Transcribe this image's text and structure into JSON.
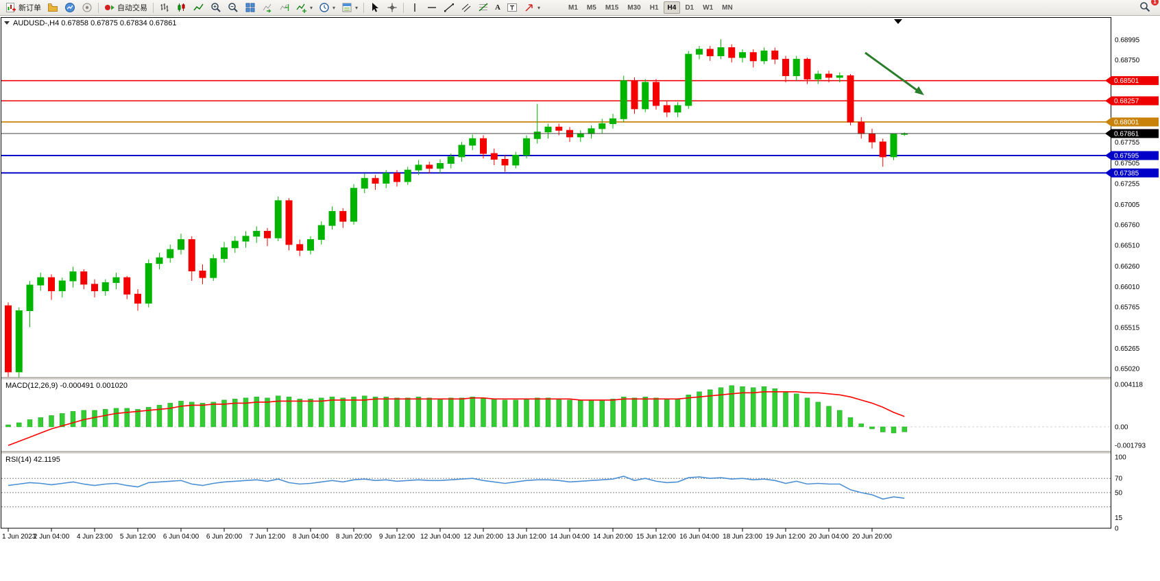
{
  "toolbar": {
    "new_order_label": "新订单",
    "auto_trading_label": "自动交易",
    "caret_glyph": "▾",
    "text_tool_glyph": "A",
    "label_tool_glyph": "T",
    "timeframes": [
      "M1",
      "M5",
      "M15",
      "M30",
      "H1",
      "H4",
      "D1",
      "W1",
      "MN"
    ],
    "active_timeframe": "H4",
    "notification_badge": "1"
  },
  "chart": {
    "symbol_title": "AUDUSD-,H4",
    "ohlc_text": "0.67858 0.67875 0.67834 0.67861",
    "price_axis_labels": [
      "0.68995",
      "0.68750",
      "0.67755",
      "0.67505",
      "0.67255",
      "0.67005",
      "0.66760",
      "0.66510",
      "0.66260",
      "0.66010",
      "0.65765",
      "0.65515",
      "0.65265",
      "0.65020"
    ],
    "tagged_levels": [
      {
        "price": "0.68501",
        "value": 0.68501,
        "color": "#ef0000",
        "line_width": 1.6
      },
      {
        "price": "0.68257",
        "value": 0.68257,
        "color": "#ef0000",
        "line_width": 1.6
      },
      {
        "price": "0.68001",
        "value": 0.68001,
        "color": "#c8820a",
        "line_width": 1.8
      },
      {
        "price": "0.67595",
        "value": 0.67595,
        "color": "#0000c8",
        "line_width": 2
      },
      {
        "price": "0.67385",
        "value": 0.67385,
        "color": "#0000c8",
        "line_width": 2
      }
    ],
    "current_price_tag": {
      "price": "0.67861",
      "value": 0.67861,
      "color": "#000000"
    }
  },
  "macd": {
    "label": "MACD(12,26,9) -0.000491 0.001020",
    "axis_labels": [
      "0.004118",
      "0.00",
      "-0.001793"
    ]
  },
  "rsi": {
    "label": "RSI(14) 42.1195",
    "axis_labels": [
      "100",
      "70",
      "50",
      "15",
      "0"
    ],
    "levels": [
      70,
      50,
      30
    ]
  },
  "time_axis": [
    "1 Jun 2023",
    "2 Jun 04:00",
    "4 Jun 23:00",
    "5 Jun 12:00",
    "6 Jun 04:00",
    "6 Jun 20:00",
    "7 Jun 12:00",
    "8 Jun 04:00",
    "8 Jun 20:00",
    "9 Jun 12:00",
    "12 Jun 04:00",
    "12 Jun 20:00",
    "13 Jun 12:00",
    "14 Jun 04:00",
    "14 Jun 20:00",
    "15 Jun 12:00",
    "16 Jun 04:00",
    "18 Jun 23:00",
    "19 Jun 12:00",
    "20 Jun 04:00",
    "20 Jun 20:00"
  ],
  "colors": {
    "candle_up": "#00b400",
    "candle_down": "#f40000",
    "macd_hist": "#33cc33",
    "macd_signal": "#ff0000",
    "rsi_line": "#4a8fd4",
    "annotation_arrow": "#2a7d2a",
    "current_price_line": "#444444"
  },
  "chart_data": [
    {
      "type": "candlestick",
      "symbol": "AUDUSD-",
      "timeframe": "H4",
      "ylim": [
        0.6502,
        0.68995
      ],
      "ohlc": [
        [
          0.6578,
          0.6582,
          0.6492,
          0.6498
        ],
        [
          0.6498,
          0.6576,
          0.649,
          0.6572
        ],
        [
          0.6572,
          0.6608,
          0.6552,
          0.6603
        ],
        [
          0.6603,
          0.6618,
          0.6596,
          0.6612
        ],
        [
          0.6612,
          0.6616,
          0.6585,
          0.6596
        ],
        [
          0.6596,
          0.6612,
          0.6588,
          0.6608
        ],
        [
          0.6608,
          0.6625,
          0.66,
          0.6619
        ],
        [
          0.6619,
          0.6622,
          0.6598,
          0.6604
        ],
        [
          0.6604,
          0.661,
          0.6588,
          0.6596
        ],
        [
          0.6596,
          0.661,
          0.659,
          0.6606
        ],
        [
          0.6606,
          0.6618,
          0.6598,
          0.6612
        ],
        [
          0.6612,
          0.6614,
          0.6586,
          0.6592
        ],
        [
          0.6592,
          0.6598,
          0.6572,
          0.6581
        ],
        [
          0.6581,
          0.6634,
          0.6576,
          0.6629
        ],
        [
          0.6629,
          0.6642,
          0.6622,
          0.6636
        ],
        [
          0.6636,
          0.6652,
          0.663,
          0.6646
        ],
        [
          0.6646,
          0.6665,
          0.664,
          0.6658
        ],
        [
          0.6658,
          0.6662,
          0.6608,
          0.662
        ],
        [
          0.662,
          0.6628,
          0.6604,
          0.6612
        ],
        [
          0.6612,
          0.664,
          0.6608,
          0.6635
        ],
        [
          0.6635,
          0.6655,
          0.663,
          0.6648
        ],
        [
          0.6648,
          0.6662,
          0.6642,
          0.6656
        ],
        [
          0.6656,
          0.6668,
          0.6648,
          0.6662
        ],
        [
          0.6662,
          0.6674,
          0.6654,
          0.6668
        ],
        [
          0.6668,
          0.6672,
          0.665,
          0.666
        ],
        [
          0.666,
          0.671,
          0.6656,
          0.6705
        ],
        [
          0.6705,
          0.6708,
          0.6645,
          0.6652
        ],
        [
          0.6652,
          0.6658,
          0.6638,
          0.6645
        ],
        [
          0.6645,
          0.6662,
          0.664,
          0.6658
        ],
        [
          0.6658,
          0.668,
          0.6652,
          0.6675
        ],
        [
          0.6675,
          0.6698,
          0.667,
          0.6692
        ],
        [
          0.6692,
          0.6696,
          0.6672,
          0.668
        ],
        [
          0.668,
          0.6725,
          0.6676,
          0.672
        ],
        [
          0.672,
          0.6738,
          0.6714,
          0.6732
        ],
        [
          0.6732,
          0.6736,
          0.6718,
          0.6726
        ],
        [
          0.6726,
          0.6742,
          0.672,
          0.6738
        ],
        [
          0.6738,
          0.6742,
          0.6722,
          0.6728
        ],
        [
          0.6728,
          0.6746,
          0.6724,
          0.6742
        ],
        [
          0.6742,
          0.6754,
          0.6736,
          0.6748
        ],
        [
          0.6748,
          0.6752,
          0.6738,
          0.6744
        ],
        [
          0.6744,
          0.6755,
          0.6738,
          0.675
        ],
        [
          0.675,
          0.6762,
          0.6744,
          0.6758
        ],
        [
          0.6758,
          0.6776,
          0.6752,
          0.6772
        ],
        [
          0.6772,
          0.6785,
          0.6766,
          0.678
        ],
        [
          0.678,
          0.6784,
          0.6756,
          0.6762
        ],
        [
          0.6762,
          0.6768,
          0.6748,
          0.6755
        ],
        [
          0.6755,
          0.676,
          0.674,
          0.6748
        ],
        [
          0.6748,
          0.6764,
          0.6744,
          0.676
        ],
        [
          0.676,
          0.6784,
          0.6756,
          0.678
        ],
        [
          0.678,
          0.6822,
          0.6774,
          0.6788
        ],
        [
          0.6788,
          0.6798,
          0.678,
          0.6794
        ],
        [
          0.6794,
          0.6798,
          0.6784,
          0.679
        ],
        [
          0.679,
          0.6794,
          0.6776,
          0.6782
        ],
        [
          0.6782,
          0.679,
          0.6776,
          0.6786
        ],
        [
          0.6786,
          0.6796,
          0.678,
          0.6792
        ],
        [
          0.6792,
          0.6804,
          0.6786,
          0.6798
        ],
        [
          0.6798,
          0.681,
          0.6792,
          0.6804
        ],
        [
          0.6804,
          0.6856,
          0.68,
          0.685
        ],
        [
          0.685,
          0.6854,
          0.681,
          0.6816
        ],
        [
          0.6816,
          0.6852,
          0.6812,
          0.6848
        ],
        [
          0.6848,
          0.6852,
          0.6815,
          0.682
        ],
        [
          0.682,
          0.6826,
          0.6806,
          0.6812
        ],
        [
          0.6812,
          0.6824,
          0.6806,
          0.682
        ],
        [
          0.682,
          0.6886,
          0.6816,
          0.6882
        ],
        [
          0.6882,
          0.6892,
          0.6876,
          0.6888
        ],
        [
          0.6888,
          0.6892,
          0.6874,
          0.688
        ],
        [
          0.688,
          0.69,
          0.6876,
          0.689
        ],
        [
          0.689,
          0.6894,
          0.6872,
          0.6878
        ],
        [
          0.6878,
          0.6888,
          0.6872,
          0.6884
        ],
        [
          0.6884,
          0.6888,
          0.6866,
          0.6874
        ],
        [
          0.6874,
          0.689,
          0.687,
          0.6886
        ],
        [
          0.6886,
          0.689,
          0.687,
          0.6876
        ],
        [
          0.6876,
          0.688,
          0.6848,
          0.6856
        ],
        [
          0.6856,
          0.688,
          0.685,
          0.6876
        ],
        [
          0.6876,
          0.6878,
          0.6846,
          0.6852
        ],
        [
          0.6852,
          0.6862,
          0.6846,
          0.6858
        ],
        [
          0.6858,
          0.6862,
          0.6848,
          0.6854
        ],
        [
          0.6854,
          0.686,
          0.6848,
          0.6856
        ],
        [
          0.6856,
          0.6858,
          0.6796,
          0.68
        ],
        [
          0.68,
          0.6806,
          0.678,
          0.6786
        ],
        [
          0.6786,
          0.6792,
          0.6768,
          0.6776
        ],
        [
          0.6776,
          0.678,
          0.6746,
          0.6758
        ],
        [
          0.6758,
          0.6784,
          0.6754,
          0.67855
        ],
        [
          0.67858,
          0.67875,
          0.67834,
          0.67861
        ]
      ]
    },
    {
      "type": "bar",
      "name": "MACD(12,26,9) histogram",
      "ylim": [
        -0.001793,
        0.004118
      ],
      "values": [
        0.0002,
        0.0004,
        0.0007,
        0.0009,
        0.0011,
        0.0013,
        0.0015,
        0.0016,
        0.0016,
        0.0017,
        0.0018,
        0.0018,
        0.0017,
        0.0019,
        0.0021,
        0.0023,
        0.0025,
        0.0024,
        0.0023,
        0.0024,
        0.0026,
        0.0027,
        0.0028,
        0.0029,
        0.0028,
        0.003,
        0.0029,
        0.0027,
        0.0027,
        0.0028,
        0.0029,
        0.0028,
        0.0029,
        0.003,
        0.0029,
        0.0029,
        0.0028,
        0.0028,
        0.0029,
        0.0028,
        0.0027,
        0.0028,
        0.0028,
        0.0029,
        0.0028,
        0.0027,
        0.0026,
        0.0026,
        0.0027,
        0.0028,
        0.0028,
        0.0027,
        0.0026,
        0.0026,
        0.0026,
        0.0026,
        0.0027,
        0.0029,
        0.0028,
        0.0029,
        0.0028,
        0.0027,
        0.0027,
        0.0031,
        0.0034,
        0.0036,
        0.0038,
        0.004,
        0.0039,
        0.0038,
        0.0039,
        0.0037,
        0.0034,
        0.0032,
        0.0028,
        0.0024,
        0.002,
        0.0016,
        0.0009,
        0.0003,
        -0.0002,
        -0.0005,
        -0.0006,
        -0.000491
      ],
      "signal_line": [
        -0.0018,
        -0.0014,
        -0.001,
        -0.0006,
        -0.0002,
        0.0001,
        0.0004,
        0.0007,
        0.0009,
        0.0011,
        0.0013,
        0.0014,
        0.0015,
        0.0016,
        0.0017,
        0.0018,
        0.002,
        0.0021,
        0.0021,
        0.0022,
        0.0022,
        0.0023,
        0.0023,
        0.0024,
        0.0024,
        0.0025,
        0.0025,
        0.0025,
        0.0025,
        0.0025,
        0.0026,
        0.0026,
        0.0026,
        0.0026,
        0.0027,
        0.0027,
        0.0027,
        0.0027,
        0.0027,
        0.0027,
        0.0027,
        0.0027,
        0.0027,
        0.0028,
        0.0028,
        0.0027,
        0.0027,
        0.0027,
        0.0027,
        0.0027,
        0.0027,
        0.0027,
        0.0027,
        0.0026,
        0.0026,
        0.0026,
        0.0026,
        0.0027,
        0.0027,
        0.0027,
        0.0027,
        0.0027,
        0.0027,
        0.0028,
        0.0029,
        0.003,
        0.0031,
        0.0032,
        0.0033,
        0.0033,
        0.0034,
        0.0034,
        0.0034,
        0.0034,
        0.0033,
        0.0033,
        0.0032,
        0.0031,
        0.0029,
        0.0026,
        0.0023,
        0.0019,
        0.0014,
        0.001
      ]
    },
    {
      "type": "line",
      "name": "RSI(14)",
      "ylim": [
        0,
        100
      ],
      "values": [
        60,
        62,
        64,
        63,
        61,
        63,
        65,
        62,
        60,
        62,
        63,
        60,
        58,
        64,
        65,
        66,
        67,
        62,
        60,
        63,
        65,
        66,
        67,
        68,
        66,
        69,
        64,
        62,
        63,
        65,
        67,
        65,
        68,
        69,
        67,
        68,
        66,
        67,
        68,
        67,
        67,
        68,
        69,
        70,
        67,
        65,
        63,
        65,
        67,
        68,
        68,
        67,
        65,
        66,
        67,
        68,
        69,
        73,
        67,
        70,
        66,
        64,
        65,
        71,
        72,
        70,
        71,
        69,
        70,
        68,
        69,
        67,
        63,
        66,
        62,
        63,
        62,
        62,
        54,
        50,
        47,
        41,
        44,
        42.1
      ]
    }
  ]
}
